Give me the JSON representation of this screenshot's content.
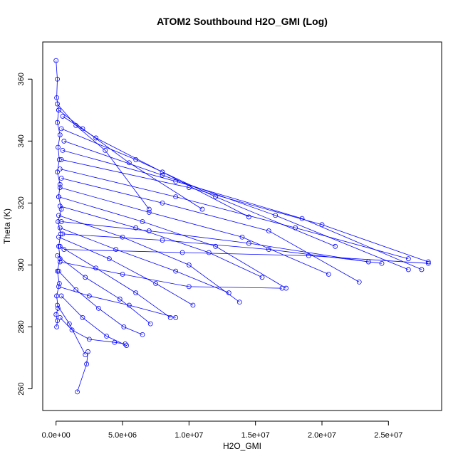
{
  "chart_data": {
    "type": "line",
    "title": "ATOM2 Southbound H2O_GMI (Log)",
    "xlabel": "H2O_GMI",
    "ylabel": "Theta (K)",
    "xlim": [
      -1000000,
      29000000
    ],
    "ylim": [
      253,
      372
    ],
    "x_ticks": [
      0,
      5000000,
      10000000,
      15000000,
      20000000,
      25000000
    ],
    "x_tick_labels": [
      "0.0e+00",
      "5.0e+06",
      "1.0e+07",
      "1.5e+07",
      "2.0e+07",
      "2.5e+07"
    ],
    "y_ticks": [
      260,
      280,
      300,
      320,
      340,
      360
    ],
    "y_tick_labels": [
      "260",
      "280",
      "300",
      "320",
      "340",
      "360"
    ],
    "series_color": "#0000ff",
    "marker": "open-circle",
    "profiles": [
      {
        "x": [
          1600000,
          2300000,
          2400000
        ],
        "y": [
          259,
          268,
          272
        ]
      },
      {
        "x": [
          300000,
          1200000,
          2500000,
          4400000,
          5200000
        ],
        "y": [
          283,
          279,
          276,
          275,
          274.5
        ]
      },
      {
        "x": [
          400000,
          2000000,
          3800000,
          5300000
        ],
        "y": [
          290,
          283,
          277,
          274
        ]
      },
      {
        "x": [
          200000,
          1500000,
          3200000,
          5100000,
          6500000
        ],
        "y": [
          298,
          292,
          286,
          280,
          277.5
        ]
      },
      {
        "x": [
          100000,
          2200000,
          4800000,
          7100000
        ],
        "y": [
          303,
          296,
          289,
          281
        ]
      },
      {
        "x": [
          300000,
          3000000,
          6000000,
          8600000
        ],
        "y": [
          306,
          299,
          291,
          283
        ]
      },
      {
        "x": [
          200000,
          4000000,
          7500000,
          10300000
        ],
        "y": [
          309,
          302,
          294,
          287
        ]
      },
      {
        "x": [
          300000,
          4500000,
          9000000,
          13000000
        ],
        "y": [
          312,
          305,
          298,
          291
        ]
      },
      {
        "x": [
          200000,
          5000000,
          10000000,
          13800000
        ],
        "y": [
          316,
          309,
          300,
          288
        ]
      },
      {
        "x": [
          300000,
          6000000,
          11500000,
          15500000
        ],
        "y": [
          319,
          312,
          304,
          296
        ]
      },
      {
        "x": [
          200000,
          6500000,
          12000000,
          17300000
        ],
        "y": [
          322,
          314,
          306,
          292.5
        ]
      },
      {
        "x": [
          300000,
          7000000,
          14000000,
          20500000
        ],
        "y": [
          325,
          317,
          309,
          297
        ]
      },
      {
        "x": [
          400000,
          8000000,
          16000000,
          22800000
        ],
        "y": [
          328,
          320,
          311,
          294.5
        ]
      },
      {
        "x": [
          300000,
          9000000,
          18000000,
          26500000
        ],
        "y": [
          331,
          322,
          312,
          302
        ]
      },
      {
        "x": [
          400000,
          10000000,
          20000000,
          28000000
        ],
        "y": [
          334,
          325,
          313,
          301
        ]
      },
      {
        "x": [
          500000,
          9000000,
          18500000,
          27500000
        ],
        "y": [
          337,
          327,
          315,
          298.5
        ]
      },
      {
        "x": [
          600000,
          8000000,
          16500000,
          26500000
        ],
        "y": [
          340,
          329,
          316,
          298.5
        ]
      },
      {
        "x": [
          400000,
          6000000,
          12000000,
          21000000
        ],
        "y": [
          344,
          334,
          322,
          306
        ]
      },
      {
        "x": [
          500000,
          3000000,
          8000000,
          14500000
        ],
        "y": [
          348,
          341,
          330,
          315.5
        ]
      },
      {
        "x": [
          200000,
          2000000,
          5500000,
          11000000
        ],
        "y": [
          350,
          344,
          333,
          318
        ]
      },
      {
        "x": [
          100000,
          1500000,
          3700000,
          7000000
        ],
        "y": [
          352,
          345,
          337,
          318
        ]
      },
      {
        "x": [
          600000,
          9500000,
          19000000,
          28000000
        ],
        "y": [
          305,
          304,
          303,
          300.5
        ]
      },
      {
        "x": [
          500000,
          8000000,
          16000000,
          24500000
        ],
        "y": [
          310,
          308,
          305,
          300.5
        ]
      },
      {
        "x": [
          400000,
          7000000,
          14500000,
          23500000
        ],
        "y": [
          314,
          311,
          307,
          301
        ]
      },
      {
        "x": [
          300000,
          5000000,
          10000000,
          17000000
        ],
        "y": [
          301,
          297,
          293,
          292.5
        ]
      },
      {
        "x": [
          200000,
          2500000,
          5500000,
          9000000
        ],
        "y": [
          293,
          290,
          287,
          283
        ]
      },
      {
        "x": [
          100000,
          1000000,
          2200000
        ],
        "y": [
          287,
          281,
          271
        ]
      }
    ],
    "vertical_profile": {
      "x": [
        0,
        100000,
        50000,
        200000,
        100000,
        300000,
        150000,
        250000,
        100000,
        300000,
        200000,
        400000,
        150000,
        350000,
        200000,
        300000,
        100000,
        250000,
        50000,
        150000,
        0,
        100000,
        50000
      ],
      "y": [
        366,
        360,
        354,
        350,
        346,
        342,
        338,
        334,
        330,
        326,
        322,
        318,
        314,
        310,
        306,
        302,
        298,
        294,
        290,
        286,
        284,
        282,
        280
      ]
    }
  }
}
